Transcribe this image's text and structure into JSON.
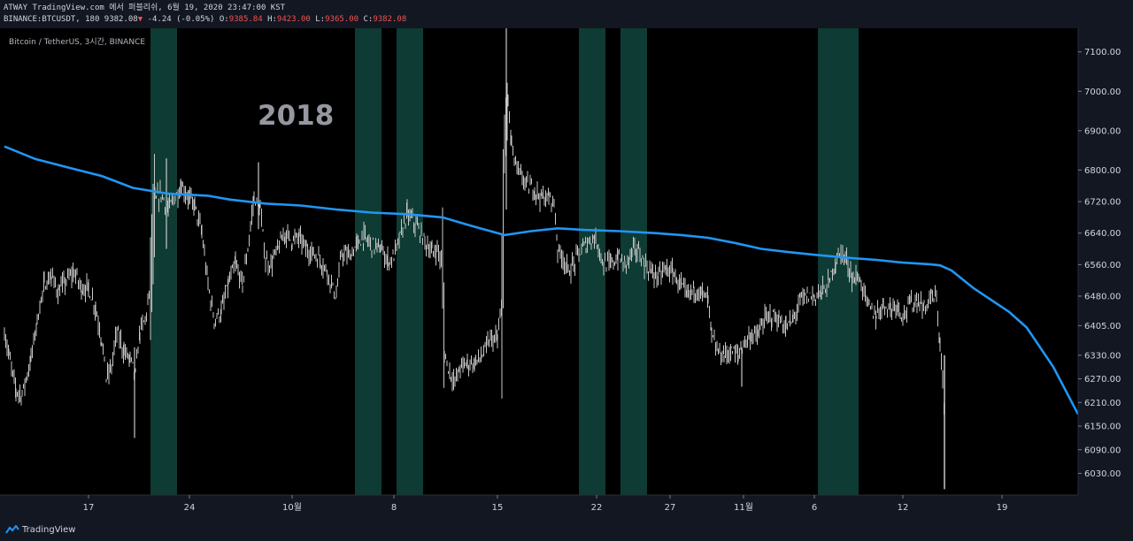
{
  "header": {
    "line1": "ATWAY TradingView.com 에서 퍼블리쉬, 6월 19, 2020 23:47:00 KST",
    "symbol": "BINANCE:BTCUSDT, 180",
    "last": "9382.08",
    "change": "-4.24 (-0.05%)",
    "o_label": "O:",
    "o_value": "9385.84",
    "h_label": "H:",
    "h_value": "9423.00",
    "l_label": "L:",
    "l_value": "9365.00",
    "c_label": "C:",
    "c_value": "9382.08"
  },
  "chart_title": "Bitcoin / TetherUS, 3시간, BINANCE",
  "annotation": "2018",
  "brand": "TradingView",
  "colors": {
    "background": "#131722",
    "plot_background": "#000000",
    "ma_line": "#2196f3",
    "highlight_band": "#0e3b34",
    "candle": "#c8c8c8",
    "down_red": "#ef5350"
  },
  "chart_data": {
    "type": "line",
    "ylim": [
      5975,
      7160
    ],
    "y_ticks": [
      7100.0,
      7000.0,
      6900.0,
      6800.0,
      6720.0,
      6640.0,
      6560.0,
      6480.0,
      6405.0,
      6330.0,
      6270.0,
      6210.0,
      6150.0,
      6090.0,
      6030.0
    ],
    "y_tick_labels": [
      "7100.00",
      "7000.00",
      "6900.00",
      "6800.00",
      "6720.00",
      "6640.00",
      "6560.00",
      "6480.00",
      "6405.00",
      "6330.00",
      "6270.00",
      "6210.00",
      "6150.00",
      "6090.00",
      "6030.00"
    ],
    "x_range": [
      0,
      1218
    ],
    "x_ticks": [
      {
        "label": "17",
        "x": 100
      },
      {
        "label": "24",
        "x": 214
      },
      {
        "label": "10월",
        "x": 330
      },
      {
        "label": "8",
        "x": 445
      },
      {
        "label": "15",
        "x": 562
      },
      {
        "label": "22",
        "x": 674
      },
      {
        "label": "27",
        "x": 757
      },
      {
        "label": "11월",
        "x": 840
      },
      {
        "label": "6",
        "x": 920
      },
      {
        "label": "12",
        "x": 1020
      },
      {
        "label": "19",
        "x": 1132
      }
    ],
    "highlight_bands": [
      [
        170,
        200
      ],
      [
        401,
        431
      ],
      [
        448,
        478
      ],
      [
        654,
        684
      ],
      [
        701,
        731
      ],
      [
        924,
        970
      ]
    ],
    "price_path": [
      [
        5,
        6390
      ],
      [
        10,
        6330
      ],
      [
        18,
        6240
      ],
      [
        25,
        6230
      ],
      [
        35,
        6320
      ],
      [
        42,
        6420
      ],
      [
        50,
        6510
      ],
      [
        58,
        6530
      ],
      [
        66,
        6490
      ],
      [
        75,
        6520
      ],
      [
        84,
        6540
      ],
      [
        92,
        6500
      ],
      [
        100,
        6500
      ],
      [
        108,
        6450
      ],
      [
        115,
        6370
      ],
      [
        120,
        6270
      ],
      [
        126,
        6300
      ],
      [
        132,
        6390
      ],
      [
        140,
        6340
      ],
      [
        147,
        6320
      ],
      [
        153,
        6280
      ],
      [
        158,
        6390
      ],
      [
        164,
        6420
      ],
      [
        170,
        6500
      ],
      [
        175,
        6720
      ],
      [
        182,
        6740
      ],
      [
        190,
        6700
      ],
      [
        198,
        6730
      ],
      [
        205,
        6760
      ],
      [
        213,
        6730
      ],
      [
        220,
        6710
      ],
      [
        228,
        6640
      ],
      [
        235,
        6510
      ],
      [
        242,
        6420
      ],
      [
        250,
        6440
      ],
      [
        258,
        6510
      ],
      [
        266,
        6560
      ],
      [
        274,
        6510
      ],
      [
        280,
        6600
      ],
      [
        287,
        6730
      ],
      [
        294,
        6700
      ],
      [
        300,
        6570
      ],
      [
        306,
        6560
      ],
      [
        314,
        6600
      ],
      [
        322,
        6640
      ],
      [
        330,
        6620
      ],
      [
        338,
        6630
      ],
      [
        346,
        6600
      ],
      [
        354,
        6590
      ],
      [
        362,
        6570
      ],
      [
        370,
        6540
      ],
      [
        376,
        6500
      ],
      [
        380,
        6480
      ],
      [
        386,
        6590
      ],
      [
        395,
        6580
      ],
      [
        403,
        6610
      ],
      [
        411,
        6630
      ],
      [
        420,
        6610
      ],
      [
        430,
        6600
      ],
      [
        438,
        6570
      ],
      [
        445,
        6580
      ],
      [
        452,
        6630
      ],
      [
        460,
        6690
      ],
      [
        470,
        6660
      ],
      [
        480,
        6620
      ],
      [
        488,
        6590
      ],
      [
        494,
        6600
      ],
      [
        500,
        6560
      ],
      [
        502,
        6330
      ],
      [
        508,
        6290
      ],
      [
        514,
        6260
      ],
      [
        520,
        6300
      ],
      [
        528,
        6310
      ],
      [
        536,
        6310
      ],
      [
        545,
        6330
      ],
      [
        554,
        6370
      ],
      [
        562,
        6370
      ],
      [
        567,
        6450
      ],
      [
        570,
        6850
      ],
      [
        574,
        6980
      ],
      [
        578,
        6860
      ],
      [
        584,
        6800
      ],
      [
        590,
        6780
      ],
      [
        596,
        6760
      ],
      [
        604,
        6750
      ],
      [
        612,
        6730
      ],
      [
        620,
        6730
      ],
      [
        626,
        6720
      ],
      [
        630,
        6600
      ],
      [
        636,
        6580
      ],
      [
        642,
        6540
      ],
      [
        648,
        6560
      ],
      [
        654,
        6590
      ],
      [
        662,
        6610
      ],
      [
        670,
        6630
      ],
      [
        676,
        6610
      ],
      [
        682,
        6560
      ],
      [
        690,
        6560
      ],
      [
        698,
        6580
      ],
      [
        706,
        6560
      ],
      [
        714,
        6590
      ],
      [
        720,
        6600
      ],
      [
        728,
        6560
      ],
      [
        736,
        6540
      ],
      [
        744,
        6530
      ],
      [
        752,
        6550
      ],
      [
        760,
        6540
      ],
      [
        768,
        6510
      ],
      [
        776,
        6480
      ],
      [
        784,
        6500
      ],
      [
        792,
        6490
      ],
      [
        800,
        6470
      ],
      [
        804,
        6380
      ],
      [
        810,
        6340
      ],
      [
        818,
        6330
      ],
      [
        826,
        6340
      ],
      [
        834,
        6330
      ],
      [
        840,
        6360
      ],
      [
        848,
        6380
      ],
      [
        856,
        6380
      ],
      [
        864,
        6420
      ],
      [
        872,
        6430
      ],
      [
        880,
        6420
      ],
      [
        888,
        6400
      ],
      [
        896,
        6420
      ],
      [
        904,
        6470
      ],
      [
        912,
        6480
      ],
      [
        920,
        6480
      ],
      [
        928,
        6490
      ],
      [
        936,
        6510
      ],
      [
        944,
        6570
      ],
      [
        952,
        6590
      ],
      [
        958,
        6560
      ],
      [
        964,
        6520
      ],
      [
        970,
        6530
      ],
      [
        976,
        6490
      ],
      [
        982,
        6450
      ],
      [
        990,
        6430
      ],
      [
        998,
        6460
      ],
      [
        1006,
        6450
      ],
      [
        1014,
        6460
      ],
      [
        1020,
        6430
      ],
      [
        1028,
        6460
      ],
      [
        1036,
        6470
      ],
      [
        1044,
        6450
      ],
      [
        1052,
        6480
      ],
      [
        1058,
        6470
      ],
      [
        1062,
        6360
      ],
      [
        1065,
        6260
      ],
      [
        1067,
        6170
      ],
      [
        1068,
        5990
      ]
    ],
    "ma_path": [
      [
        5,
        6860
      ],
      [
        40,
        6828
      ],
      [
        80,
        6805
      ],
      [
        115,
        6785
      ],
      [
        150,
        6755
      ],
      [
        190,
        6740
      ],
      [
        235,
        6735
      ],
      [
        260,
        6725
      ],
      [
        300,
        6715
      ],
      [
        340,
        6710
      ],
      [
        380,
        6700
      ],
      [
        420,
        6692
      ],
      [
        460,
        6688
      ],
      [
        500,
        6680
      ],
      [
        530,
        6660
      ],
      [
        570,
        6635
      ],
      [
        600,
        6645
      ],
      [
        630,
        6652
      ],
      [
        660,
        6648
      ],
      [
        700,
        6645
      ],
      [
        740,
        6640
      ],
      [
        770,
        6635
      ],
      [
        800,
        6628
      ],
      [
        830,
        6615
      ],
      [
        860,
        6600
      ],
      [
        890,
        6592
      ],
      [
        920,
        6585
      ],
      [
        960,
        6577
      ],
      [
        990,
        6572
      ],
      [
        1020,
        6565
      ],
      [
        1050,
        6561
      ],
      [
        1062,
        6558
      ],
      [
        1075,
        6545
      ],
      [
        1100,
        6500
      ],
      [
        1140,
        6440
      ],
      [
        1160,
        6400
      ],
      [
        1190,
        6300
      ],
      [
        1218,
        6180
      ]
    ]
  }
}
